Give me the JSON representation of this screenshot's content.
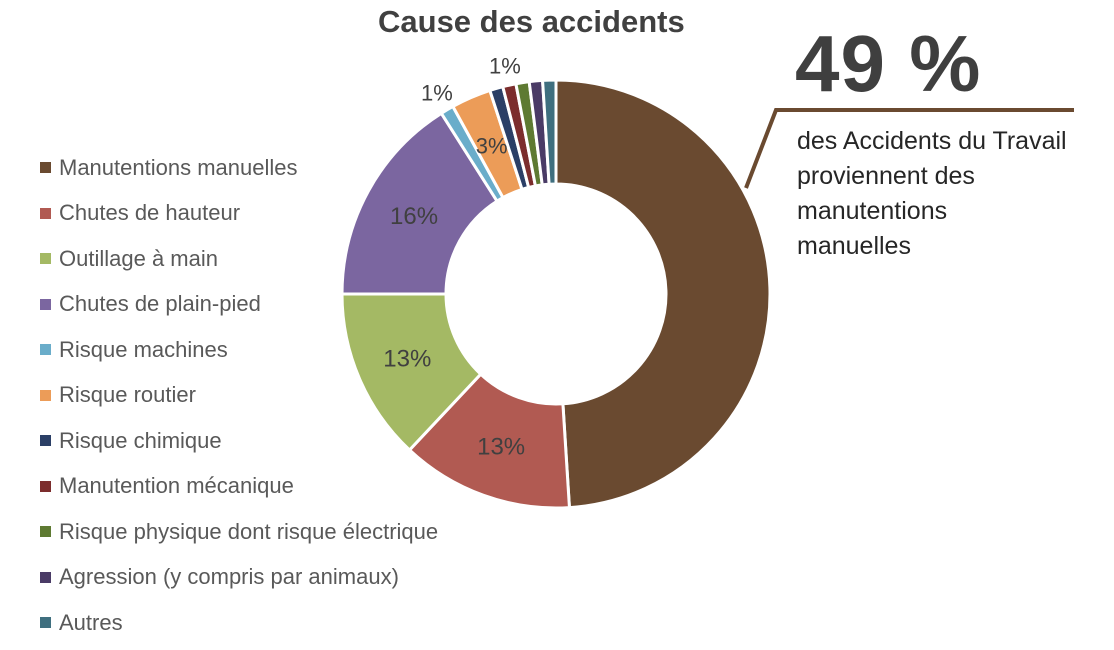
{
  "chart_data": {
    "type": "pie",
    "title": "Cause des accidents",
    "categories": [
      "Manutentions manuelles",
      "Chutes de hauteur",
      "Outillage à main",
      "Chutes de plain-pied",
      "Risque machines",
      "Risque routier",
      "Risque chimique",
      "Manutention mécanique",
      "Risque physique dont risque électrique",
      "Agression (y compris par animaux)",
      "Autres"
    ],
    "values": [
      49,
      13,
      13,
      16,
      1,
      3,
      1,
      1,
      1,
      1,
      1
    ],
    "data_labels": [
      "",
      "13%",
      "13%",
      "16%",
      "1%",
      "3%",
      "",
      "1%",
      "",
      "",
      ""
    ],
    "colors": [
      "#6a4a30",
      "#b15a52",
      "#a4b964",
      "#7b66a0",
      "#6aadca",
      "#ec9c58",
      "#2b3f66",
      "#7c2d2d",
      "#5e7a32",
      "#4a3b66",
      "#3f6f7f"
    ],
    "legend": "left",
    "donut": true
  },
  "callout": {
    "value": "49 %",
    "text": "des Accidents du Travail proviennent des manutentions manuelles",
    "color": "#6a4a30"
  }
}
